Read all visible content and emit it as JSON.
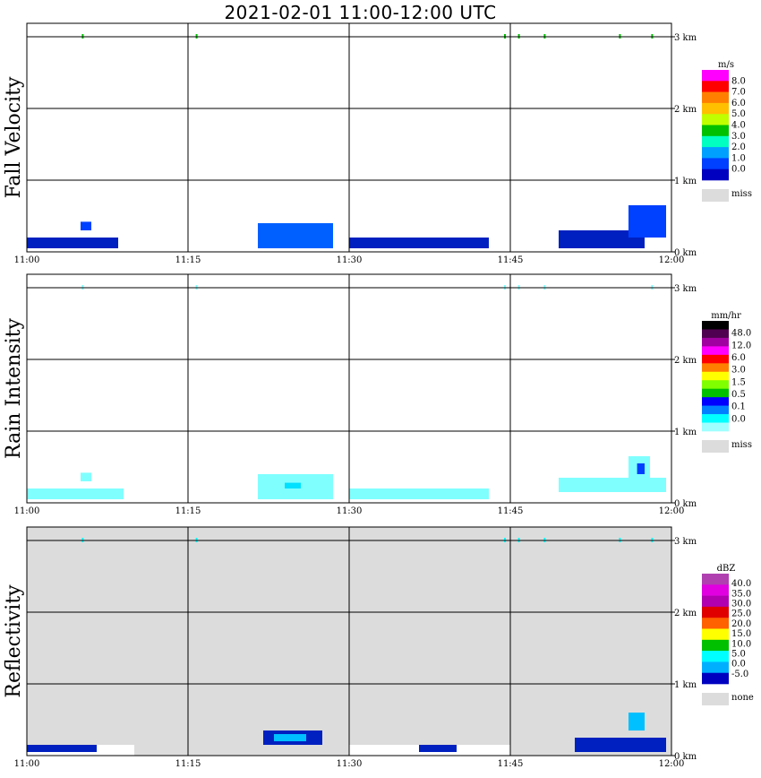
{
  "title": "2021-02-01   11:00-12:00 UTC",
  "chart_data": [
    {
      "type": "heatmap",
      "ylabel": "Fall Velocity",
      "x_ticks": [
        "11:00",
        "11:15",
        "11:30",
        "11:45",
        "12:00"
      ],
      "y_ticks": [
        "0 km",
        "1 km",
        "2 km",
        "3 km"
      ],
      "ylim_km": [
        0,
        3.2
      ],
      "background": "#ffffff",
      "legend": {
        "unit": "m/s",
        "labels": [
          "8.0",
          "7.0",
          "6.0",
          "5.0",
          "4.0",
          "3.0",
          "2.0",
          "1.0",
          "0.0"
        ],
        "colors": [
          "#ff00ff",
          "#ff0000",
          "#ff8000",
          "#ffc000",
          "#c0ff00",
          "#00c000",
          "#00ffc0",
          "#00a0ff",
          "#0040ff",
          "#0000c0"
        ],
        "miss_label": "miss",
        "miss_color": "#dcdcdc"
      },
      "echoes": [
        {
          "t0": 0.0,
          "t1": 8.5,
          "h0": 0.05,
          "h1": 0.2,
          "color": "#0020c0"
        },
        {
          "t0": 5.0,
          "t1": 6.0,
          "h0": 0.3,
          "h1": 0.42,
          "color": "#0040ff"
        },
        {
          "t0": 21.5,
          "t1": 28.5,
          "h0": 0.05,
          "h1": 0.4,
          "color": "#0060ff"
        },
        {
          "t0": 30.0,
          "t1": 43.0,
          "h0": 0.05,
          "h1": 0.2,
          "color": "#0020c0"
        },
        {
          "t0": 49.5,
          "t1": 57.5,
          "h0": 0.05,
          "h1": 0.3,
          "color": "#0020c0"
        },
        {
          "t0": 56.0,
          "t1": 59.5,
          "h0": 0.2,
          "h1": 0.65,
          "color": "#0040ff"
        }
      ],
      "top_marks_min": [
        5.2,
        15.8,
        44.5,
        45.8,
        48.2,
        55.2,
        58.2
      ],
      "top_mark_color": "#00c000"
    },
    {
      "type": "heatmap",
      "ylabel": "Rain Intensity",
      "x_ticks": [
        "11:00",
        "11:15",
        "11:30",
        "11:45",
        "12:00"
      ],
      "y_ticks": [
        "0 km",
        "1 km",
        "2 km",
        "3 km"
      ],
      "ylim_km": [
        0,
        3.2
      ],
      "background": "#ffffff",
      "legend": {
        "unit": "mm/hr",
        "labels": [
          "48.0",
          "12.0",
          "6.0",
          "3.0",
          "1.5",
          "0.5",
          "0.1",
          "0.0"
        ],
        "colors": [
          "#000000",
          "#500050",
          "#a000a0",
          "#ff00ff",
          "#ff0000",
          "#ff8000",
          "#ffff00",
          "#80ff00",
          "#00c000",
          "#0000ff",
          "#0080ff",
          "#00ffff",
          "#a0ffff"
        ],
        "miss_label": "miss",
        "miss_color": "#dcdcdc"
      },
      "echoes": [
        {
          "t0": 0.0,
          "t1": 9.0,
          "h0": 0.05,
          "h1": 0.2,
          "color": "#80ffff"
        },
        {
          "t0": 5.0,
          "t1": 6.0,
          "h0": 0.3,
          "h1": 0.42,
          "color": "#80ffff"
        },
        {
          "t0": 21.5,
          "t1": 28.5,
          "h0": 0.05,
          "h1": 0.4,
          "color": "#80ffff"
        },
        {
          "t0": 24.0,
          "t1": 25.5,
          "h0": 0.2,
          "h1": 0.28,
          "color": "#00e0ff"
        },
        {
          "t0": 30.0,
          "t1": 43.0,
          "h0": 0.05,
          "h1": 0.2,
          "color": "#80ffff"
        },
        {
          "t0": 49.5,
          "t1": 59.5,
          "h0": 0.15,
          "h1": 0.35,
          "color": "#80ffff"
        },
        {
          "t0": 56.0,
          "t1": 58.0,
          "h0": 0.35,
          "h1": 0.65,
          "color": "#80ffff"
        },
        {
          "t0": 56.8,
          "t1": 57.5,
          "h0": 0.4,
          "h1": 0.55,
          "color": "#0040ff"
        }
      ],
      "top_marks_min": [
        5.2,
        15.8,
        44.5,
        45.8,
        48.2,
        58.2
      ],
      "top_mark_color": "#80ffff"
    },
    {
      "type": "heatmap",
      "ylabel": "Reflectivity",
      "x_ticks": [
        "11:00",
        "11:15",
        "11:30",
        "11:45",
        "12:00"
      ],
      "y_ticks": [
        "0 km",
        "1 km",
        "2 km",
        "3 km"
      ],
      "ylim_km": [
        0,
        3.2
      ],
      "background": "#dcdcdc",
      "legend": {
        "unit": "dBZ",
        "labels": [
          "40.0",
          "35.0",
          "30.0",
          "25.0",
          "20.0",
          "15.0",
          "10.0",
          "5.0",
          "0.0",
          "-5.0"
        ],
        "colors": [
          "#b040b0",
          "#e000e0",
          "#b000b0",
          "#e00000",
          "#ff6000",
          "#ffff00",
          "#00c000",
          "#00ffff",
          "#00b0ff",
          "#0000c0"
        ],
        "miss_label": "none",
        "miss_color": "#dcdcdc"
      },
      "echoes": [
        {
          "t0": 0.0,
          "t1": 10.0,
          "h0": 0.0,
          "h1": 0.15,
          "color": "#ffffff"
        },
        {
          "t0": 0.0,
          "t1": 6.5,
          "h0": 0.05,
          "h1": 0.15,
          "color": "#0020c0"
        },
        {
          "t0": 22.0,
          "t1": 27.5,
          "h0": 0.15,
          "h1": 0.35,
          "color": "#0020c0"
        },
        {
          "t0": 23.0,
          "t1": 26.0,
          "h0": 0.2,
          "h1": 0.3,
          "color": "#00c0ff"
        },
        {
          "t0": 30.0,
          "t1": 45.0,
          "h0": 0.0,
          "h1": 0.15,
          "color": "#ffffff"
        },
        {
          "t0": 36.5,
          "t1": 40.0,
          "h0": 0.05,
          "h1": 0.15,
          "color": "#0020c0"
        },
        {
          "t0": 51.0,
          "t1": 59.5,
          "h0": 0.05,
          "h1": 0.25,
          "color": "#0020c0"
        },
        {
          "t0": 56.0,
          "t1": 57.5,
          "h0": 0.35,
          "h1": 0.6,
          "color": "#00c0ff"
        }
      ],
      "top_marks_min": [
        5.2,
        15.8,
        44.5,
        45.8,
        48.2,
        55.2,
        58.2
      ],
      "top_mark_color": "#00ffff"
    }
  ]
}
